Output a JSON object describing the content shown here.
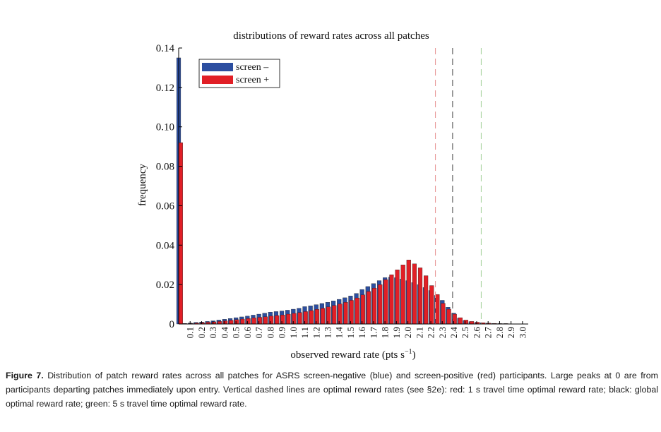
{
  "chart_data": {
    "type": "bar",
    "title": "distributions of reward rates across all patches",
    "xlabel": "observed reward rate (pts s",
    "xlabel_superscript": "−1",
    "xlabel_close": ")",
    "ylabel": "frequency",
    "xlim": [
      0,
      3.05
    ],
    "ylim": [
      0,
      0.14
    ],
    "y_ticks": [
      0,
      0.02,
      0.04,
      0.06,
      0.08,
      0.1,
      0.12,
      0.14
    ],
    "y_tick_labels": [
      "0",
      "0.02",
      "0.04",
      "0.06",
      "0.08",
      "0.10",
      "0.12",
      "0.14"
    ],
    "x_ticks": [
      0.1,
      0.2,
      0.3,
      0.4,
      0.5,
      0.6,
      0.7,
      0.8,
      0.9,
      1.0,
      1.1,
      1.2,
      1.3,
      1.4,
      1.5,
      1.6,
      1.7,
      1.8,
      1.9,
      2.0,
      2.1,
      2.2,
      2.3,
      2.4,
      2.5,
      2.6,
      2.7,
      2.8,
      2.9,
      3.0
    ],
    "x_tick_labels": [
      "0.1",
      "0.2",
      "0.3",
      "0.4",
      "0.5",
      "0.6",
      "0.7",
      "0.8",
      "0.9",
      "1.0",
      "1.1",
      "1.2",
      "1.3",
      "1.4",
      "1.5",
      "1.6",
      "1.7",
      "1.8",
      "1.9",
      "2.0",
      "2.1",
      "2.2",
      "2.3",
      "2.4",
      "2.5",
      "2.6",
      "2.7",
      "2.8",
      "2.9",
      "3.0"
    ],
    "legend_position": "top-left",
    "series": [
      {
        "name": "screen –",
        "color": "#2c4ea0",
        "points": [
          [
            0.0,
            0.135
          ],
          [
            0.05,
            0.0003
          ],
          [
            0.1,
            0.0005
          ],
          [
            0.15,
            0.0008
          ],
          [
            0.2,
            0.001
          ],
          [
            0.25,
            0.0013
          ],
          [
            0.3,
            0.0016
          ],
          [
            0.35,
            0.002
          ],
          [
            0.4,
            0.0024
          ],
          [
            0.45,
            0.0028
          ],
          [
            0.5,
            0.0032
          ],
          [
            0.55,
            0.0036
          ],
          [
            0.6,
            0.004
          ],
          [
            0.65,
            0.0045
          ],
          [
            0.7,
            0.005
          ],
          [
            0.75,
            0.0055
          ],
          [
            0.8,
            0.006
          ],
          [
            0.85,
            0.0063
          ],
          [
            0.9,
            0.0066
          ],
          [
            0.95,
            0.007
          ],
          [
            1.0,
            0.0075
          ],
          [
            1.05,
            0.008
          ],
          [
            1.1,
            0.0088
          ],
          [
            1.15,
            0.0092
          ],
          [
            1.2,
            0.0098
          ],
          [
            1.25,
            0.0104
          ],
          [
            1.3,
            0.011
          ],
          [
            1.35,
            0.0117
          ],
          [
            1.4,
            0.0125
          ],
          [
            1.45,
            0.0133
          ],
          [
            1.5,
            0.0142
          ],
          [
            1.55,
            0.0155
          ],
          [
            1.6,
            0.0175
          ],
          [
            1.65,
            0.019
          ],
          [
            1.7,
            0.0205
          ],
          [
            1.75,
            0.022
          ],
          [
            1.8,
            0.0235
          ],
          [
            1.85,
            0.0238
          ],
          [
            1.9,
            0.0235
          ],
          [
            1.95,
            0.0228
          ],
          [
            2.0,
            0.022
          ],
          [
            2.05,
            0.021
          ],
          [
            2.1,
            0.02
          ],
          [
            2.15,
            0.0185
          ],
          [
            2.2,
            0.017
          ],
          [
            2.25,
            0.0145
          ],
          [
            2.3,
            0.012
          ],
          [
            2.35,
            0.0085
          ],
          [
            2.4,
            0.0055
          ],
          [
            2.45,
            0.003
          ],
          [
            2.5,
            0.0018
          ],
          [
            2.55,
            0.0012
          ],
          [
            2.6,
            0.0008
          ],
          [
            2.65,
            0.0006
          ],
          [
            2.7,
            0.0004
          ],
          [
            2.75,
            0.0003
          ],
          [
            2.8,
            0.0002
          ],
          [
            2.85,
            0.0002
          ],
          [
            2.9,
            0.0001
          ],
          [
            2.95,
            0.0001
          ],
          [
            3.0,
            0.0001
          ]
        ]
      },
      {
        "name": "screen +",
        "color": "#e11f26",
        "points": [
          [
            0.01,
            0.092
          ],
          [
            0.05,
            0.0002
          ],
          [
            0.1,
            0.0003
          ],
          [
            0.15,
            0.0005
          ],
          [
            0.2,
            0.0007
          ],
          [
            0.25,
            0.0009
          ],
          [
            0.3,
            0.0011
          ],
          [
            0.35,
            0.0013
          ],
          [
            0.4,
            0.0016
          ],
          [
            0.45,
            0.0019
          ],
          [
            0.5,
            0.0022
          ],
          [
            0.55,
            0.0025
          ],
          [
            0.6,
            0.0028
          ],
          [
            0.65,
            0.0031
          ],
          [
            0.7,
            0.0034
          ],
          [
            0.75,
            0.0037
          ],
          [
            0.8,
            0.004
          ],
          [
            0.85,
            0.0043
          ],
          [
            0.9,
            0.0046
          ],
          [
            0.95,
            0.005
          ],
          [
            1.0,
            0.0054
          ],
          [
            1.05,
            0.0058
          ],
          [
            1.1,
            0.0063
          ],
          [
            1.15,
            0.0068
          ],
          [
            1.2,
            0.0074
          ],
          [
            1.25,
            0.008
          ],
          [
            1.3,
            0.0087
          ],
          [
            1.35,
            0.0094
          ],
          [
            1.4,
            0.0102
          ],
          [
            1.45,
            0.011
          ],
          [
            1.5,
            0.012
          ],
          [
            1.55,
            0.0132
          ],
          [
            1.6,
            0.0148
          ],
          [
            1.65,
            0.0165
          ],
          [
            1.7,
            0.0182
          ],
          [
            1.75,
            0.02
          ],
          [
            1.8,
            0.0225
          ],
          [
            1.85,
            0.025
          ],
          [
            1.9,
            0.0275
          ],
          [
            1.95,
            0.03
          ],
          [
            2.0,
            0.0325
          ],
          [
            2.05,
            0.0305
          ],
          [
            2.1,
            0.0285
          ],
          [
            2.15,
            0.0245
          ],
          [
            2.2,
            0.0195
          ],
          [
            2.25,
            0.015
          ],
          [
            2.3,
            0.0105
          ],
          [
            2.35,
            0.0075
          ],
          [
            2.4,
            0.005
          ],
          [
            2.45,
            0.0032
          ],
          [
            2.5,
            0.002
          ],
          [
            2.55,
            0.0013
          ],
          [
            2.6,
            0.0009
          ],
          [
            2.65,
            0.0006
          ],
          [
            2.7,
            0.0004
          ],
          [
            2.75,
            0.0003
          ],
          [
            2.8,
            0.0002
          ],
          [
            2.85,
            0.0002
          ],
          [
            2.9,
            0.0001
          ],
          [
            2.95,
            0.0001
          ],
          [
            3.0,
            0.0001
          ]
        ]
      }
    ],
    "reference_lines": [
      {
        "x": 2.24,
        "color": "#e89a9a"
      },
      {
        "x": 2.39,
        "color": "#555555"
      },
      {
        "x": 2.64,
        "color": "#a9d3a0"
      }
    ]
  },
  "caption": {
    "label": "Figure 7.",
    "text": "Distribution of patch reward rates across all patches for ASRS screen-negative (blue) and screen-positive (red) participants. Large peaks at 0 are from participants departing patches immediately upon entry. Vertical dashed lines are optimal reward rates (see §2e): red: 1 s travel time optimal reward rate; black: global optimal reward rate; green: 5 s travel time optimal reward rate."
  }
}
